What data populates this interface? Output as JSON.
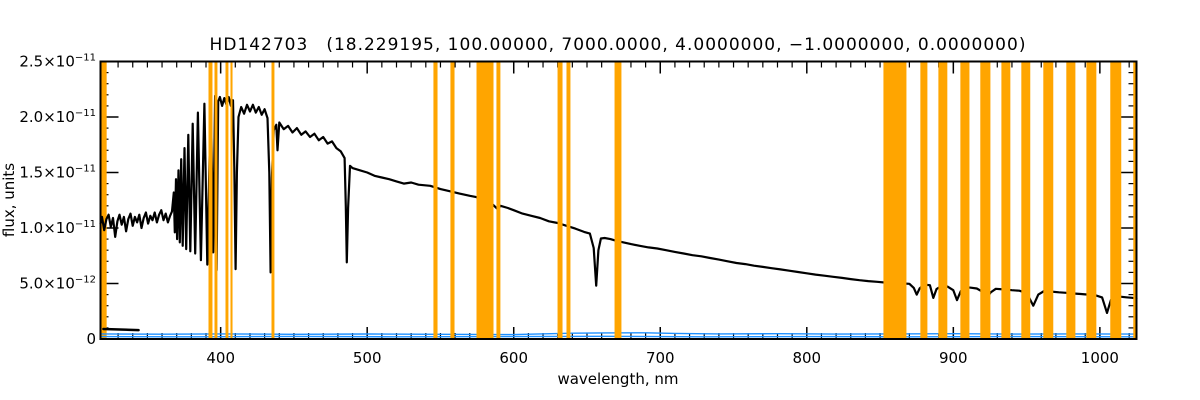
{
  "chart_data": {
    "type": "line",
    "title": "HD142703    (18.229195, 100.00000, 7000.0000, 4.0000000, −1.0000000, 0.0000000)",
    "title_star": "HD142703",
    "title_params": "(18.229195, 100.00000, 7000.0000, 4.0000000, −1.0000000, 0.0000000)",
    "xlabel": "wavelength, nm",
    "ylabel": "flux, units",
    "x_range_nm": [
      318,
      1025
    ],
    "y_range_flux_1e11": [
      0,
      2.5
    ],
    "x_ticks_major": [
      400,
      500,
      600,
      700,
      800,
      900,
      1000
    ],
    "x_tick_minor_step_nm": 10,
    "y_ticks": [
      {
        "value": 0.0,
        "label": "0",
        "exp": ""
      },
      {
        "value": 0.5,
        "label": "5.0×10",
        "exp": "−12"
      },
      {
        "value": 1.0,
        "label": "1.0×10",
        "exp": "−11"
      },
      {
        "value": 1.5,
        "label": "1.5×10",
        "exp": "−11"
      },
      {
        "value": 2.0,
        "label": "2.0×10",
        "exp": "−11"
      },
      {
        "value": 2.5,
        "label": "2.5×10",
        "exp": "−11"
      }
    ],
    "y_tick_minor_step": 0.1,
    "grid": false,
    "legend": "none",
    "colors": {
      "spectrum": "#000000",
      "baseline": "#1E90FF",
      "mask_band": "#FFA500",
      "frame": "#000000",
      "background": "#FFFFFF"
    },
    "masked_bands_nm_under": [
      [
        318.0,
        322.2
      ]
    ],
    "masked_bands_nm": [
      [
        391.7,
        394.4
      ],
      [
        395.8,
        397.8
      ],
      [
        403.3,
        405.3
      ],
      [
        406.7,
        408.1
      ],
      [
        434.7,
        436.7
      ],
      [
        545.2,
        548.0
      ],
      [
        556.8,
        559.6
      ],
      [
        574.6,
        586.2
      ],
      [
        588.2,
        590.9
      ],
      [
        629.9,
        633.3
      ],
      [
        636.0,
        638.7
      ],
      [
        668.8,
        673.5
      ],
      [
        852.3,
        868.0
      ],
      [
        877.5,
        882.3
      ],
      [
        889.8,
        895.9
      ],
      [
        904.8,
        911.0
      ],
      [
        918.4,
        925.3
      ],
      [
        932.8,
        938.9
      ],
      [
        946.4,
        952.5
      ],
      [
        961.4,
        968.2
      ],
      [
        977.1,
        983.3
      ],
      [
        990.8,
        997.6
      ],
      [
        1007.1,
        1014.6
      ],
      [
        1022.8,
        1025.0
      ]
    ],
    "series": [
      {
        "name": "stellar-spectrum",
        "color": "#000000",
        "width": 2.2,
        "points": [
          [
            318,
            1.04
          ],
          [
            319,
            1.1
          ],
          [
            320.5,
            0.98
          ],
          [
            322,
            1.08
          ],
          [
            323.5,
            1.12
          ],
          [
            325,
            1.01
          ],
          [
            326.5,
            1.09
          ],
          [
            328,
            0.92
          ],
          [
            329.5,
            1.06
          ],
          [
            331,
            1.12
          ],
          [
            332.5,
            1.03
          ],
          [
            334,
            1.1
          ],
          [
            335.5,
            0.97
          ],
          [
            337,
            1.08
          ],
          [
            338.5,
            1.13
          ],
          [
            340,
            1.02
          ],
          [
            341.5,
            1.1
          ],
          [
            343,
            1.05
          ],
          [
            344.5,
            1.12
          ],
          [
            346,
            1.0
          ],
          [
            347.5,
            1.09
          ],
          [
            349,
            1.14
          ],
          [
            350.5,
            1.04
          ],
          [
            352,
            1.11
          ],
          [
            353.5,
            1.07
          ],
          [
            355,
            1.14
          ],
          [
            356.5,
            1.05
          ],
          [
            358,
            1.12
          ],
          [
            359.5,
            1.16
          ],
          [
            361,
            1.07
          ],
          [
            362.5,
            1.13
          ],
          [
            364,
            1.05
          ],
          [
            365.5,
            1.11
          ],
          [
            366.8,
            1.15
          ],
          [
            368,
            1.32
          ],
          [
            368.7,
            0.96
          ],
          [
            369.5,
            1.44
          ],
          [
            370.3,
            0.9
          ],
          [
            371.2,
            1.52
          ],
          [
            372.1,
            0.87
          ],
          [
            373.1,
            1.62
          ],
          [
            374.1,
            0.84
          ],
          [
            375.3,
            1.72
          ],
          [
            376.5,
            0.81
          ],
          [
            377.9,
            1.84
          ],
          [
            379.3,
            0.79
          ],
          [
            380.9,
            1.94
          ],
          [
            382.6,
            0.77
          ],
          [
            384.5,
            2.04
          ],
          [
            386.5,
            0.71
          ],
          [
            388.9,
            2.12
          ],
          [
            390.9,
            0.67
          ],
          [
            393.3,
            2.17
          ],
          [
            394.9,
            0.78
          ],
          [
            396.2,
            2.19
          ],
          [
            397.2,
            0.62
          ],
          [
            398.3,
            2.14
          ],
          [
            399.5,
            2.18
          ],
          [
            401,
            2.1
          ],
          [
            402.5,
            2.17
          ],
          [
            404,
            2.11
          ],
          [
            405.5,
            2.18
          ],
          [
            407,
            2.1
          ],
          [
            408.4,
            2.15
          ],
          [
            409.3,
            1.55
          ],
          [
            410.2,
            0.63
          ],
          [
            411.1,
            1.5
          ],
          [
            412.2,
            2.0
          ],
          [
            414,
            2.09
          ],
          [
            416,
            2.03
          ],
          [
            418,
            2.11
          ],
          [
            420,
            2.05
          ],
          [
            422,
            2.11
          ],
          [
            424,
            2.04
          ],
          [
            426,
            2.09
          ],
          [
            428,
            2.02
          ],
          [
            430,
            2.07
          ],
          [
            432,
            1.99
          ],
          [
            433.2,
            1.5
          ],
          [
            434.1,
            0.6
          ],
          [
            435,
            1.45
          ],
          [
            436.2,
            1.88
          ],
          [
            438,
            1.93
          ],
          [
            438.8,
            1.7
          ],
          [
            440,
            1.95
          ],
          [
            443,
            1.89
          ],
          [
            446,
            1.92
          ],
          [
            449,
            1.86
          ],
          [
            452,
            1.9
          ],
          [
            455,
            1.84
          ],
          [
            458,
            1.87
          ],
          [
            461,
            1.82
          ],
          [
            464,
            1.85
          ],
          [
            467,
            1.79
          ],
          [
            470,
            1.82
          ],
          [
            473,
            1.76
          ],
          [
            476,
            1.78
          ],
          [
            479,
            1.72
          ],
          [
            482,
            1.69
          ],
          [
            484.6,
            1.63
          ],
          [
            485.4,
            1.2
          ],
          [
            486.1,
            0.69
          ],
          [
            487,
            1.18
          ],
          [
            488.3,
            1.56
          ],
          [
            490,
            1.54
          ],
          [
            495,
            1.52
          ],
          [
            500,
            1.5
          ],
          [
            505,
            1.47
          ],
          [
            510,
            1.455
          ],
          [
            515,
            1.44
          ],
          [
            520,
            1.42
          ],
          [
            525,
            1.4
          ],
          [
            530,
            1.41
          ],
          [
            535,
            1.39
          ],
          [
            543,
            1.38
          ],
          [
            550,
            1.35
          ],
          [
            557,
            1.33
          ],
          [
            563,
            1.31
          ],
          [
            570,
            1.29
          ],
          [
            574,
            1.28
          ],
          [
            580,
            1.25
          ],
          [
            585,
            1.22
          ],
          [
            589,
            1.17
          ],
          [
            591,
            1.2
          ],
          [
            596,
            1.18
          ],
          [
            600,
            1.16
          ],
          [
            606,
            1.13
          ],
          [
            612,
            1.11
          ],
          [
            618,
            1.09
          ],
          [
            624,
            1.06
          ],
          [
            630,
            1.045
          ],
          [
            636,
            1.02
          ],
          [
            642,
            0.995
          ],
          [
            648,
            0.965
          ],
          [
            652,
            0.95
          ],
          [
            654.6,
            0.82
          ],
          [
            656.3,
            0.48
          ],
          [
            657.8,
            0.8
          ],
          [
            659.5,
            0.905
          ],
          [
            662,
            0.91
          ],
          [
            666,
            0.9
          ],
          [
            670,
            0.885
          ],
          [
            675,
            0.87
          ],
          [
            680,
            0.855
          ],
          [
            686,
            0.84
          ],
          [
            692,
            0.825
          ],
          [
            698,
            0.815
          ],
          [
            704,
            0.8
          ],
          [
            710,
            0.785
          ],
          [
            716,
            0.77
          ],
          [
            722,
            0.755
          ],
          [
            728,
            0.745
          ],
          [
            734,
            0.73
          ],
          [
            740,
            0.715
          ],
          [
            746,
            0.7
          ],
          [
            752,
            0.685
          ],
          [
            758,
            0.675
          ],
          [
            764,
            0.66
          ],
          [
            770,
            0.65
          ],
          [
            776,
            0.638
          ],
          [
            782,
            0.627
          ],
          [
            788,
            0.615
          ],
          [
            794,
            0.604
          ],
          [
            800,
            0.592
          ],
          [
            806,
            0.58
          ],
          [
            812,
            0.57
          ],
          [
            818,
            0.56
          ],
          [
            824,
            0.55
          ],
          [
            830,
            0.54
          ],
          [
            836,
            0.53
          ],
          [
            842,
            0.522
          ],
          [
            848,
            0.515
          ],
          [
            854,
            0.508
          ],
          [
            860,
            0.503
          ],
          [
            866,
            0.5
          ],
          [
            870,
            0.497
          ],
          [
            873,
            0.46
          ],
          [
            875,
            0.4
          ],
          [
            877,
            0.455
          ],
          [
            880,
            0.49
          ],
          [
            884,
            0.485
          ],
          [
            886.3,
            0.37
          ],
          [
            888.5,
            0.45
          ],
          [
            892,
            0.478
          ],
          [
            896,
            0.472
          ],
          [
            900,
            0.44
          ],
          [
            902.5,
            0.35
          ],
          [
            905,
            0.43
          ],
          [
            908,
            0.468
          ],
          [
            912,
            0.462
          ],
          [
            916,
            0.455
          ],
          [
            920,
            0.425
          ],
          [
            922.9,
            0.37
          ],
          [
            925.5,
            0.42
          ],
          [
            929,
            0.452
          ],
          [
            934,
            0.447
          ],
          [
            940,
            0.44
          ],
          [
            945,
            0.435
          ],
          [
            950,
            0.415
          ],
          [
            954.6,
            0.3
          ],
          [
            958,
            0.4
          ],
          [
            962,
            0.432
          ],
          [
            967,
            0.427
          ],
          [
            972,
            0.421
          ],
          [
            977,
            0.416
          ],
          [
            982,
            0.41
          ],
          [
            987,
            0.405
          ],
          [
            992,
            0.4
          ],
          [
            997,
            0.394
          ],
          [
            1001.5,
            0.375
          ],
          [
            1004.9,
            0.235
          ],
          [
            1007.5,
            0.35
          ],
          [
            1010,
            0.386
          ],
          [
            1014,
            0.381
          ],
          [
            1018,
            0.376
          ],
          [
            1022,
            0.371
          ],
          [
            1025,
            0.366
          ]
        ]
      },
      {
        "name": "baseline-upper",
        "color": "#1E90FF",
        "width": 1.4,
        "points": [
          [
            318,
            0.046
          ],
          [
            360,
            0.043
          ],
          [
            400,
            0.046
          ],
          [
            450,
            0.042
          ],
          [
            500,
            0.045
          ],
          [
            550,
            0.042
          ],
          [
            600,
            0.04
          ],
          [
            640,
            0.052
          ],
          [
            660,
            0.055
          ],
          [
            690,
            0.056
          ],
          [
            710,
            0.05
          ],
          [
            740,
            0.046
          ],
          [
            780,
            0.048
          ],
          [
            820,
            0.044
          ],
          [
            860,
            0.046
          ],
          [
            900,
            0.048
          ],
          [
            940,
            0.044
          ],
          [
            980,
            0.046
          ],
          [
            1025,
            0.044
          ]
        ]
      },
      {
        "name": "baseline-lower",
        "color": "#1E90FF",
        "width": 1.4,
        "points": [
          [
            318,
            0.022
          ],
          [
            380,
            0.02
          ],
          [
            450,
            0.023
          ],
          [
            520,
            0.02
          ],
          [
            590,
            0.022
          ],
          [
            660,
            0.024
          ],
          [
            730,
            0.02
          ],
          [
            800,
            0.022
          ],
          [
            870,
            0.02
          ],
          [
            940,
            0.022
          ],
          [
            1025,
            0.02
          ]
        ]
      },
      {
        "name": "left-low-segment",
        "color": "#000000",
        "width": 2.5,
        "points": [
          [
            320,
            0.09
          ],
          [
            344,
            0.08
          ]
        ]
      }
    ]
  }
}
